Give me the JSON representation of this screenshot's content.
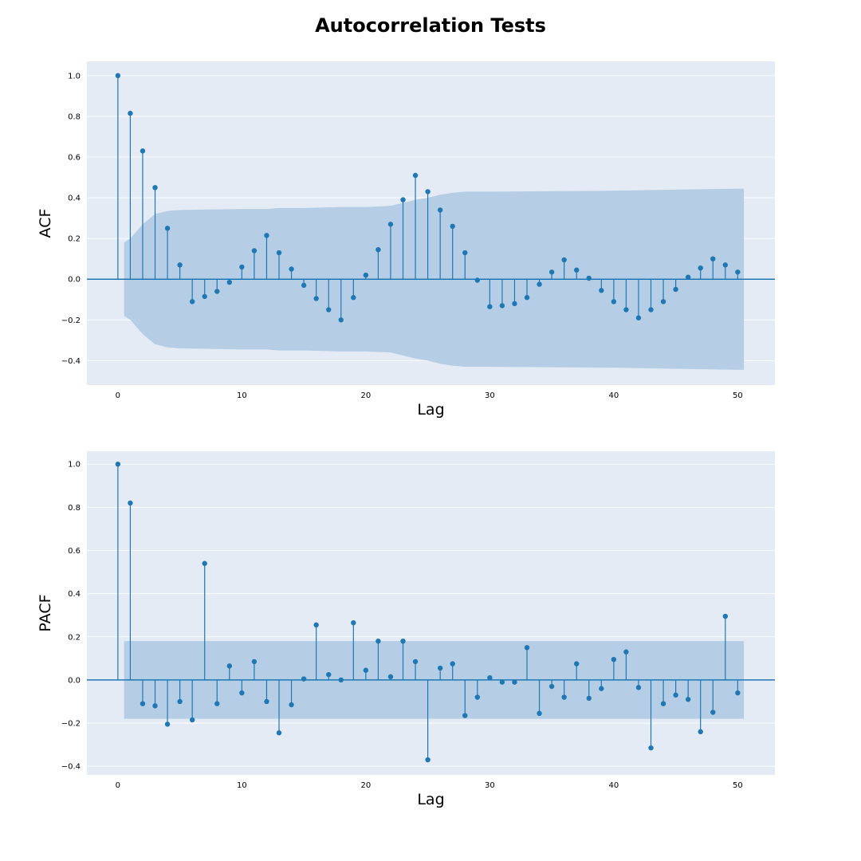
{
  "figure_title": "Autocorrelation Tests",
  "colors": {
    "background": "#e5ebf5",
    "grid": "#ffffff",
    "stem": "#1f77b4",
    "band": "#b5cee5"
  },
  "chart_data": [
    {
      "type": "stem",
      "name": "acf",
      "xlabel": "Lag",
      "ylabel": "ACF",
      "xlim": [
        -2.5,
        53
      ],
      "ylim": [
        -0.52,
        1.07
      ],
      "xticks": [
        0,
        10,
        20,
        30,
        40,
        50
      ],
      "yticks": [
        -0.4,
        -0.2,
        0.0,
        0.2,
        0.4,
        0.6,
        0.8,
        1.0
      ],
      "ytick_labels": [
        "−0.4",
        "−0.2",
        "0.0",
        "0.2",
        "0.4",
        "0.6",
        "0.8",
        "1.0"
      ],
      "grid": true,
      "lags": [
        0,
        1,
        2,
        3,
        4,
        5,
        6,
        7,
        8,
        9,
        10,
        11,
        12,
        13,
        14,
        15,
        16,
        17,
        18,
        19,
        20,
        21,
        22,
        23,
        24,
        25,
        26,
        27,
        28,
        29,
        30,
        31,
        32,
        33,
        34,
        35,
        36,
        37,
        38,
        39,
        40,
        41,
        42,
        43,
        44,
        45,
        46,
        47,
        48,
        49,
        50
      ],
      "values": [
        1.0,
        0.815,
        0.63,
        0.45,
        0.25,
        0.07,
        -0.11,
        -0.085,
        -0.06,
        -0.015,
        0.06,
        0.14,
        0.215,
        0.13,
        0.05,
        -0.03,
        -0.095,
        -0.15,
        -0.2,
        -0.09,
        0.02,
        0.145,
        0.27,
        0.39,
        0.51,
        0.43,
        0.34,
        0.26,
        0.13,
        -0.005,
        -0.135,
        -0.13,
        -0.12,
        -0.09,
        -0.025,
        0.035,
        0.095,
        0.045,
        0.005,
        -0.055,
        -0.11,
        -0.15,
        -0.19,
        -0.15,
        -0.11,
        -0.05,
        0.01,
        0.055,
        0.1,
        0.07,
        0.035
      ],
      "confidence_interval": {
        "lags": [
          0.5,
          1,
          2,
          3,
          4,
          5,
          10,
          12,
          13,
          15,
          18,
          20,
          22,
          23,
          24,
          25,
          26,
          27,
          28,
          30,
          40,
          45,
          50,
          50.5
        ],
        "upper": [
          0.18,
          0.2,
          0.27,
          0.32,
          0.335,
          0.34,
          0.345,
          0.345,
          0.35,
          0.35,
          0.355,
          0.355,
          0.36,
          0.375,
          0.39,
          0.4,
          0.415,
          0.425,
          0.43,
          0.43,
          0.435,
          0.44,
          0.445,
          0.445
        ]
      }
    },
    {
      "type": "stem",
      "name": "pacf",
      "xlabel": "Lag",
      "ylabel": "PACF",
      "xlim": [
        -2.5,
        53
      ],
      "ylim": [
        -0.44,
        1.06
      ],
      "xticks": [
        0,
        10,
        20,
        30,
        40,
        50
      ],
      "yticks": [
        -0.4,
        -0.2,
        0.0,
        0.2,
        0.4,
        0.6,
        0.8,
        1.0
      ],
      "ytick_labels": [
        "−0.4",
        "−0.2",
        "0.0",
        "0.2",
        "0.4",
        "0.6",
        "0.8",
        "1.0"
      ],
      "grid": true,
      "lags": [
        0,
        1,
        2,
        3,
        4,
        5,
        6,
        7,
        8,
        9,
        10,
        11,
        12,
        13,
        14,
        15,
        16,
        17,
        18,
        19,
        20,
        21,
        22,
        23,
        24,
        25,
        26,
        27,
        28,
        29,
        30,
        31,
        32,
        33,
        34,
        35,
        36,
        37,
        38,
        39,
        40,
        41,
        42,
        43,
        44,
        45,
        46,
        47,
        48,
        49,
        50
      ],
      "values": [
        1.0,
        0.82,
        -0.11,
        -0.12,
        -0.205,
        -0.1,
        -0.185,
        0.54,
        -0.11,
        0.065,
        -0.06,
        0.085,
        -0.1,
        -0.245,
        -0.115,
        0.005,
        0.255,
        0.025,
        0.0,
        0.265,
        0.045,
        0.18,
        0.015,
        0.18,
        0.085,
        -0.37,
        0.055,
        0.075,
        -0.165,
        -0.08,
        0.01,
        -0.01,
        -0.01,
        0.15,
        -0.155,
        -0.03,
        -0.08,
        0.075,
        -0.085,
        -0.04,
        0.095,
        0.13,
        -0.035,
        -0.315,
        -0.11,
        -0.07,
        -0.09,
        -0.24,
        -0.15,
        0.295,
        -0.06
      ],
      "confidence_interval": {
        "lags": [
          0.5,
          50.5
        ],
        "upper": [
          0.18,
          0.18
        ]
      }
    }
  ]
}
